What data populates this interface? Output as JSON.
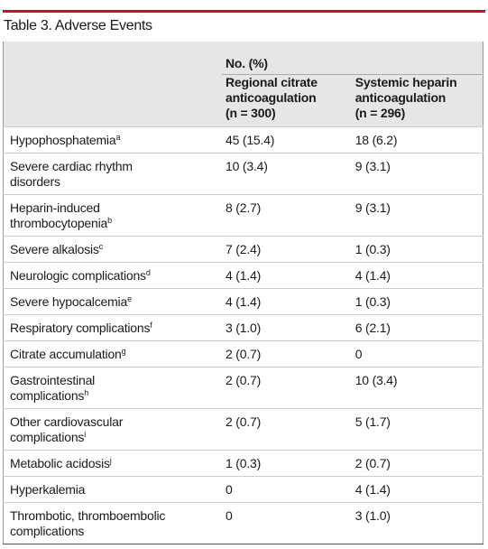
{
  "title": "Table 3. Adverse Events",
  "table": {
    "group_header": "No. (%)",
    "columns": [
      [
        "Regional citrate",
        "anticoagulation",
        "(n = 300)"
      ],
      [
        "Systemic heparin",
        "anticoagulation",
        "(n = 296)"
      ]
    ],
    "rows": [
      {
        "label": [
          "Hypophosphatemia"
        ],
        "note": "a",
        "values": [
          "45 (15.4)",
          "18 (6.2)"
        ]
      },
      {
        "label": [
          "Severe cardiac rhythm",
          "disorders"
        ],
        "note": null,
        "values": [
          "10 (3.4)",
          "9 (3.1)"
        ]
      },
      {
        "label": [
          "Heparin-induced",
          "thrombocytopenia"
        ],
        "note": "b",
        "values": [
          "8 (2.7)",
          "9 (3.1)"
        ]
      },
      {
        "label": [
          "Severe alkalosis"
        ],
        "note": "c",
        "values": [
          "7 (2.4)",
          "1 (0.3)"
        ]
      },
      {
        "label": [
          "Neurologic complications"
        ],
        "note": "d",
        "values": [
          "4 (1.4)",
          "4 (1.4)"
        ]
      },
      {
        "label": [
          "Severe hypocalcemia"
        ],
        "note": "e",
        "values": [
          "4 (1.4)",
          "1 (0.3)"
        ]
      },
      {
        "label": [
          "Respiratory complications"
        ],
        "note": "f",
        "values": [
          "3 (1.0)",
          "6 (2.1)"
        ]
      },
      {
        "label": [
          "Citrate accumulation"
        ],
        "note": "g",
        "values": [
          "2 (0.7)",
          "0"
        ]
      },
      {
        "label": [
          "Gastrointestinal",
          "complications"
        ],
        "note": "h",
        "values": [
          "2 (0.7)",
          "10 (3.4)"
        ]
      },
      {
        "label": [
          "Other cardiovascular",
          "complications"
        ],
        "note": "i",
        "values": [
          "2 (0.7)",
          "5 (1.7)"
        ]
      },
      {
        "label": [
          "Metabolic acidosis"
        ],
        "note": "j",
        "values": [
          "1 (0.3)",
          "2 (0.7)"
        ]
      },
      {
        "label": [
          "Hyperkalemia"
        ],
        "note": null,
        "values": [
          "0",
          "4 (1.4)"
        ]
      },
      {
        "label": [
          "Thrombotic, thromboembolic",
          "complications"
        ],
        "note": null,
        "values": [
          "0",
          "3 (1.0)"
        ]
      }
    ]
  }
}
